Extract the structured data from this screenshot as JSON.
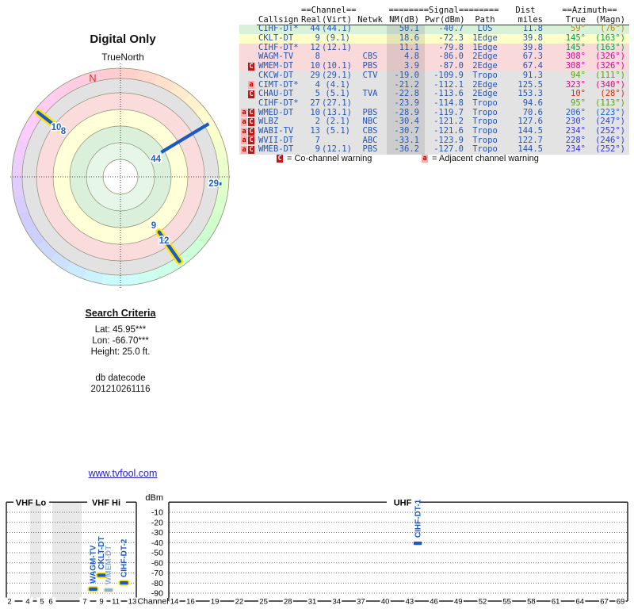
{
  "colors": {
    "accent_blue": "#2356b8",
    "station_blue": "#1a5ac8",
    "muted_blue": "#8ab0e0",
    "yellow_outline": "#ffe400",
    "muted_yellow_outline": "#fbf3b8",
    "north_red": "#e03030",
    "link": "#2323cc"
  },
  "chart_data": [
    {
      "type": "radar-polar",
      "title": "Digital Only",
      "orientation": "TrueNorth",
      "north_label": "N",
      "ring_fills_outer_to_inner": [
        "hue-wheel",
        "#e2e2e2",
        "#fadcdc",
        "#ffffd8",
        "#daf0da",
        "#e7f7e7",
        "#ffffff"
      ],
      "markers": [
        {
          "label": "44",
          "azimuth_deg": 59,
          "radial": [
            60,
            130
          ],
          "shape": "line",
          "yellow_outline": false
        },
        {
          "label": "29",
          "azimuth_deg": 94,
          "radial": [
            126,
            126
          ],
          "shape": "dot",
          "yellow_outline": false
        },
        {
          "label": "10",
          "azimuth_deg": 308,
          "radial": [
            98,
            132
          ],
          "shape": "line",
          "yellow_outline": true
        },
        {
          "label": "8",
          "azimuth_deg": 308,
          "radial": null,
          "shape": "label-only",
          "yellow_outline": false
        },
        {
          "label": "9",
          "azimuth_deg": 145,
          "radial": null,
          "shape": "label-only",
          "yellow_outline": false
        },
        {
          "label": "12",
          "azimuth_deg": 145,
          "radial": [
            85,
            130
          ],
          "shape": "line",
          "yellow_outline": true
        }
      ]
    },
    {
      "type": "spectrum",
      "ylabel": "dBm",
      "xlabel": "Channel",
      "y_ticks": [
        -10,
        -20,
        -30,
        -40,
        -50,
        -60,
        -70,
        -80,
        -90
      ],
      "sections": [
        {
          "label": "VHF Lo"
        },
        {
          "label": "VHF Hi"
        },
        {
          "label": "UHF"
        }
      ],
      "vhf_channel_ticks": [
        2,
        4,
        5,
        6,
        7,
        9,
        11,
        13
      ],
      "uhf_channel_ticks": [
        14,
        16,
        19,
        22,
        25,
        28,
        31,
        34,
        37,
        40,
        43,
        46,
        49,
        52,
        55,
        58,
        61,
        64,
        67,
        69
      ],
      "stations": [
        {
          "label": "WAGM-TV",
          "channel": 8,
          "power_dbm": -86.0,
          "band": "VHF",
          "yellow_outline": true,
          "muted": false
        },
        {
          "label": "CKLT-DT",
          "channel": 9,
          "power_dbm": -72.3,
          "band": "VHF",
          "yellow_outline": true,
          "muted": false
        },
        {
          "label": "WMEM-DT",
          "channel": 10,
          "power_dbm": -87.0,
          "band": "VHF",
          "yellow_outline": true,
          "muted": true
        },
        {
          "label": "CIHF-DT-2",
          "channel": 12,
          "power_dbm": -79.8,
          "band": "VHF",
          "yellow_outline": true,
          "muted": false
        },
        {
          "label": "CIHF-DT-1",
          "channel": 44,
          "power_dbm": -40.7,
          "band": "UHF",
          "yellow_outline": false,
          "muted": false
        }
      ]
    }
  ],
  "table": {
    "group_headers": {
      "channel": "==Channel==",
      "signal": "========Signal========",
      "dist": "Dist",
      "azimuth": "==Azimuth=="
    },
    "columns": [
      "Callsign",
      "Real",
      "(Virt)",
      "Netwk",
      "NM(dB)",
      "Pwr(dBm)",
      "Path",
      "miles",
      "True",
      "(Magn)"
    ],
    "rows": [
      {
        "callsign": "CIHF-DT*",
        "real": "44",
        "virt": "(44.1)",
        "netwk": "",
        "nm": "50.1",
        "pwr": "-40.7",
        "path": "LOS",
        "miles": "11.8",
        "az_true": "59°",
        "az_magn": "(76°)",
        "row_bg": "#d9f0d9",
        "az_color": "#bb8e00",
        "markers": []
      },
      {
        "callsign": "CKLT-DT",
        "real": "9",
        "virt": "(9.1)",
        "netwk": "",
        "nm": "18.6",
        "pwr": "-72.3",
        "path": "1Edge",
        "miles": "39.8",
        "az_true": "145°",
        "az_magn": "(163°)",
        "row_bg": "#ffffc8",
        "az_color": "#00a550",
        "markers": []
      },
      {
        "callsign": "CIHF-DT*",
        "real": "12",
        "virt": "(12.1)",
        "netwk": "",
        "nm": "11.1",
        "pwr": "-79.8",
        "path": "1Edge",
        "miles": "39.8",
        "az_true": "145°",
        "az_magn": "(163°)",
        "row_bg": "#f9d9d9",
        "az_color": "#00a550",
        "markers": []
      },
      {
        "callsign": "WAGM-TV",
        "real": "8",
        "virt": "",
        "netwk": "CBS",
        "nm": "4.8",
        "pwr": "-86.0",
        "path": "2Edge",
        "miles": "67.3",
        "az_true": "308°",
        "az_magn": "(326°)",
        "row_bg": "#f9d9d9",
        "az_color": "#e000a8",
        "markers": []
      },
      {
        "callsign": "WMEM-DT",
        "real": "10",
        "virt": "(10.1)",
        "netwk": "PBS",
        "nm": "3.9",
        "pwr": "-87.0",
        "path": "2Edge",
        "miles": "67.4",
        "az_true": "308°",
        "az_magn": "(326°)",
        "row_bg": "#f9d9d9",
        "az_color": "#e000a8",
        "markers": [
          "C"
        ]
      },
      {
        "callsign": "CKCW-DT",
        "real": "29",
        "virt": "(29.1)",
        "netwk": "CTV",
        "nm": "-19.0",
        "pwr": "-109.9",
        "path": "Tropo",
        "miles": "91.3",
        "az_true": "94°",
        "az_magn": "(111°)",
        "row_bg": "#e3e3e3",
        "az_color": "#4caa00",
        "markers": []
      },
      {
        "callsign": "CIMT-DT*",
        "real": "4",
        "virt": "(4.1)",
        "netwk": "",
        "nm": "-21.2",
        "pwr": "-112.1",
        "path": "2Edge",
        "miles": "125.5",
        "az_true": "323°",
        "az_magn": "(340°)",
        "row_bg": "#e3e3e3",
        "az_color": "#ee0080",
        "markers": [
          "a"
        ]
      },
      {
        "callsign": "CHAU-DT",
        "real": "5",
        "virt": "(5.1)",
        "netwk": "TVA",
        "nm": "-22.8",
        "pwr": "-113.6",
        "path": "2Edge",
        "miles": "153.3",
        "az_true": "10°",
        "az_magn": "(28°)",
        "row_bg": "#e3e3e3",
        "az_color": "#dd2a00",
        "markers": [
          "C"
        ]
      },
      {
        "callsign": "CIHF-DT*",
        "real": "27",
        "virt": "(27.1)",
        "netwk": "",
        "nm": "-23.9",
        "pwr": "-114.8",
        "path": "Tropo",
        "miles": "94.6",
        "az_true": "95°",
        "az_magn": "(113°)",
        "row_bg": "#e3e3e3",
        "az_color": "#4caa00",
        "markers": []
      },
      {
        "callsign": "WMED-DT",
        "real": "10",
        "virt": "(13.1)",
        "netwk": "PBS",
        "nm": "-28.9",
        "pwr": "-119.7",
        "path": "Tropo",
        "miles": "70.6",
        "az_true": "206°",
        "az_magn": "(223°)",
        "row_bg": "#e3e3e3",
        "az_color": "#1f64d0",
        "markers": [
          "a",
          "C"
        ]
      },
      {
        "callsign": "WLBZ",
        "real": "2",
        "virt": "(2.1)",
        "netwk": "NBC",
        "nm": "-30.4",
        "pwr": "-121.2",
        "path": "Tropo",
        "miles": "127.6",
        "az_true": "230°",
        "az_magn": "(247°)",
        "row_bg": "#e3e3e3",
        "az_color": "#2a43dd",
        "markers": [
          "a",
          "C"
        ]
      },
      {
        "callsign": "WABI-TV",
        "real": "13",
        "virt": "(5.1)",
        "netwk": "CBS",
        "nm": "-30.7",
        "pwr": "-121.6",
        "path": "Tropo",
        "miles": "144.5",
        "az_true": "234°",
        "az_magn": "(252°)",
        "row_bg": "#e3e3e3",
        "az_color": "#3a35dd",
        "markers": [
          "a",
          "C"
        ]
      },
      {
        "callsign": "WVII-DT",
        "real": "7",
        "virt": "",
        "netwk": "ABC",
        "nm": "-33.1",
        "pwr": "-123.9",
        "path": "Tropo",
        "miles": "122.7",
        "az_true": "228°",
        "az_magn": "(246°)",
        "row_bg": "#e3e3e3",
        "az_color": "#2a43dd",
        "markers": [
          "a",
          "C"
        ]
      },
      {
        "callsign": "WMEB-DT",
        "real": "9",
        "virt": "(12.1)",
        "netwk": "PBS",
        "nm": "-36.2",
        "pwr": "-127.0",
        "path": "Tropo",
        "miles": "144.5",
        "az_true": "234°",
        "az_magn": "(252°)",
        "row_bg": "#e3e3e3",
        "az_color": "#3a35dd",
        "markers": [
          "a",
          "C"
        ]
      }
    ],
    "legend": {
      "co_symbol": "C",
      "co_label": "= Co-channel warning",
      "adj_symbol": "a",
      "adj_label": "= Adjacent channel warning"
    }
  },
  "search_criteria": {
    "title": "Search Criteria",
    "lat": "Lat: 45.95***",
    "lon": "Lon: -66.70***",
    "height": "Height: 25.0 ft.",
    "db_label": "db datecode",
    "db_value": "201210261116"
  },
  "footer_link": "www.tvfool.com"
}
